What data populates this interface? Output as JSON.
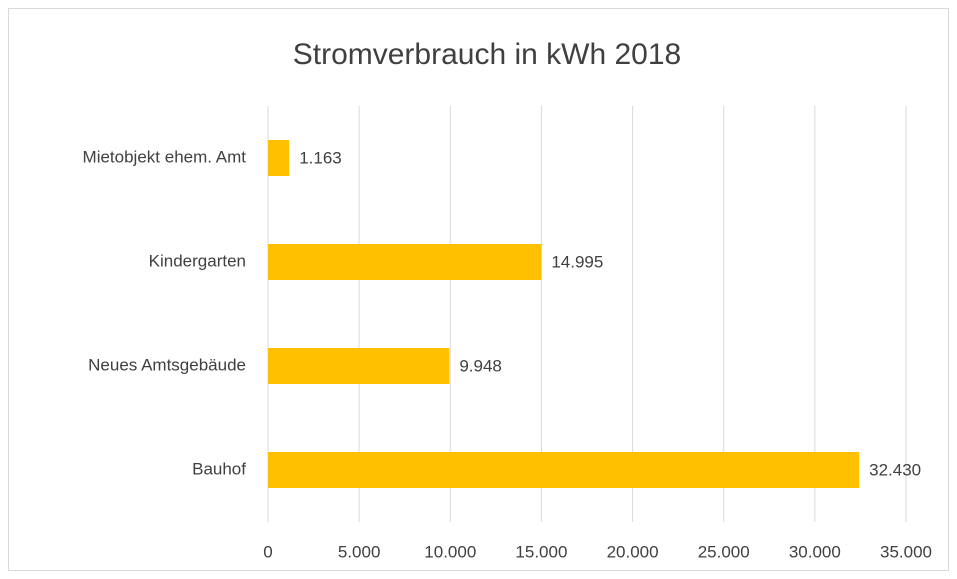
{
  "chart_data": {
    "type": "bar",
    "orientation": "horizontal",
    "title": "Stromverbrauch in kWh 2018",
    "categories": [
      "Mietobjekt ehem. Amt",
      "Kindergarten",
      "Neues Amtsgebäude",
      "Bauhof"
    ],
    "values": [
      1163,
      14995,
      9948,
      32430
    ],
    "value_labels": [
      "1.163",
      "14.995",
      "9.948",
      "32.430"
    ],
    "color": "#ffc000",
    "xlim": [
      0,
      35000
    ],
    "xticks": [
      0,
      {
        "value": 5000,
        "label": "5.000"
      },
      {
        "value": 10000,
        "label": "10.000"
      },
      {
        "value": 15000,
        "label": "15.000"
      },
      {
        "value": 20000,
        "label": "20.000"
      },
      {
        "value": 25000,
        "label": "25.000"
      },
      {
        "value": 30000,
        "label": "30.000"
      },
      {
        "value": 35000,
        "label": "35.000"
      }
    ],
    "grid": true
  }
}
